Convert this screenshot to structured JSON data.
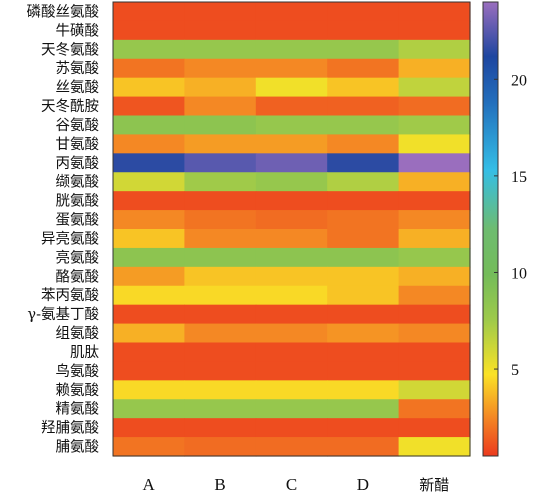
{
  "chart_data": {
    "type": "heatmap",
    "title": "",
    "xlabel": "",
    "ylabel": "",
    "columns": [
      "A",
      "B",
      "C",
      "D",
      "新醋"
    ],
    "rows": [
      "磷酸丝氨酸",
      "牛磺酸",
      "天冬氨酸",
      "苏氨酸",
      "丝氨酸",
      "天冬酰胺",
      "谷氨酸",
      "甘氨酸",
      "丙氨酸",
      "缬氨酸",
      "胱氨酸",
      "蛋氨酸",
      "异亮氨酸",
      "亮氨酸",
      "酪氨酸",
      "苯丙氨酸",
      "γ-氨基丁酸",
      "组氨酸",
      "肌肽",
      "鸟氨酸",
      "赖氨酸",
      "精氨酸",
      "羟脯氨酸",
      "脯氨酸"
    ],
    "values": [
      [
        1.0,
        1.0,
        1.0,
        1.0,
        1.0
      ],
      [
        1.0,
        1.0,
        1.0,
        1.0,
        1.0
      ],
      [
        8.0,
        8.0,
        8.0,
        8.0,
        7.0
      ],
      [
        2.0,
        2.5,
        2.5,
        2.0,
        3.5
      ],
      [
        4.0,
        3.5,
        5.0,
        4.0,
        6.5
      ],
      [
        1.2,
        2.5,
        1.5,
        1.5,
        1.8
      ],
      [
        8.5,
        8.5,
        8.0,
        8.0,
        7.5
      ],
      [
        2.5,
        3.0,
        3.0,
        2.5,
        5.0
      ],
      [
        21.5,
        22.5,
        23.0,
        21.5,
        24.0
      ],
      [
        6.0,
        7.5,
        8.0,
        7.0,
        3.5
      ],
      [
        1.0,
        1.0,
        1.0,
        1.0,
        1.0
      ],
      [
        2.5,
        2.0,
        1.8,
        2.0,
        2.5
      ],
      [
        4.0,
        2.5,
        2.5,
        2.0,
        3.5
      ],
      [
        8.5,
        8.5,
        8.5,
        8.5,
        8.0
      ],
      [
        3.0,
        4.0,
        4.0,
        4.0,
        3.5
      ],
      [
        4.5,
        4.5,
        4.5,
        4.0,
        2.5
      ],
      [
        1.0,
        1.0,
        1.0,
        1.0,
        1.0
      ],
      [
        3.5,
        2.5,
        2.5,
        2.8,
        2.5
      ],
      [
        1.0,
        1.0,
        1.0,
        1.0,
        1.0
      ],
      [
        1.0,
        1.0,
        1.0,
        1.0,
        1.0
      ],
      [
        4.5,
        4.5,
        4.5,
        4.5,
        6.0
      ],
      [
        8.0,
        8.0,
        8.0,
        8.0,
        2.0
      ],
      [
        1.0,
        1.0,
        1.0,
        1.0,
        1.0
      ],
      [
        2.0,
        1.8,
        1.8,
        1.8,
        5.0
      ]
    ],
    "colorbar": {
      "ticks": [
        5,
        10,
        15,
        20
      ],
      "range": [
        0.5,
        24
      ]
    }
  }
}
